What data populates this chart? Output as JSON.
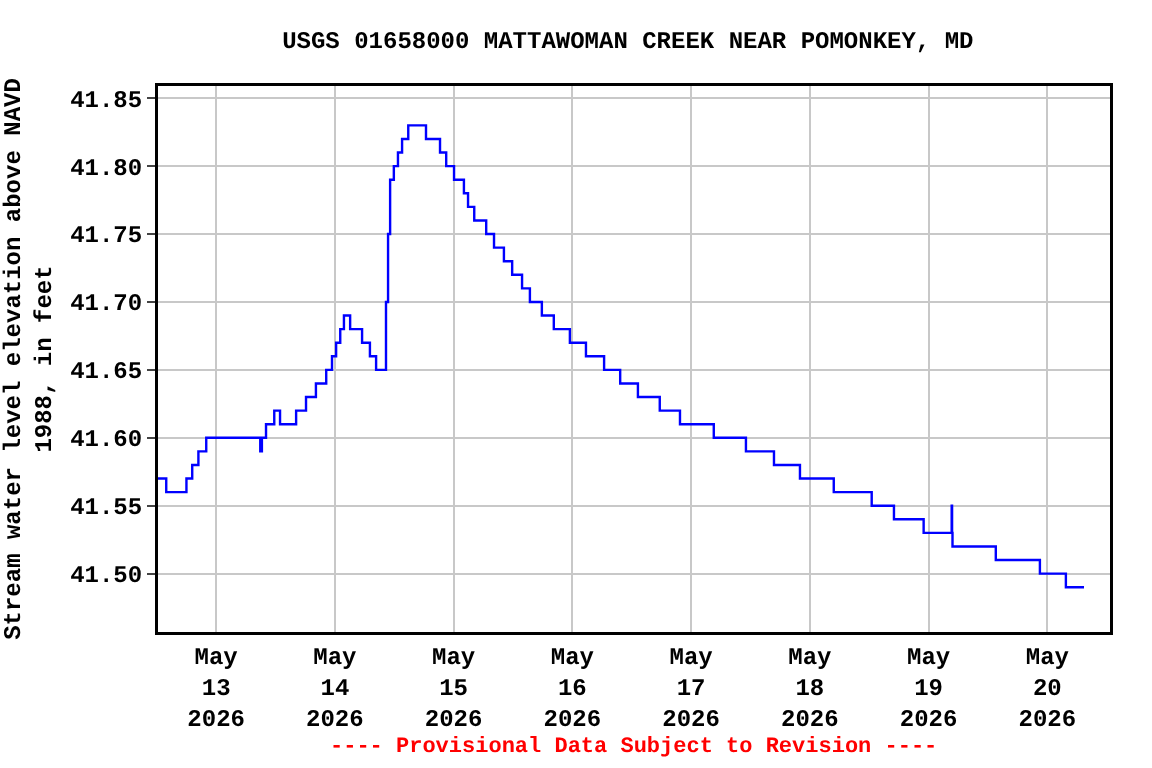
{
  "chart_data": {
    "type": "step",
    "title": "USGS 01658000 MATTAWOMAN CREEK NEAR POMONKEY, MD",
    "ylabel": "Stream water level elevation above NAVD\n1988, in feet",
    "annotations": [
      "---- Provisional Data Subject to Revision ----"
    ],
    "x": [
      "2026-05-12T12:15",
      "2026-05-12T13:55",
      "2026-05-12T18:00",
      "2026-05-12T19:10",
      "2026-05-12T20:25",
      "2026-05-12T22:00",
      "2026-05-13T08:05",
      "2026-05-13T08:55",
      "2026-05-13T09:15",
      "2026-05-13T10:05",
      "2026-05-13T11:45",
      "2026-05-13T12:55",
      "2026-05-13T16:10",
      "2026-05-13T18:10",
      "2026-05-13T20:10",
      "2026-05-13T22:15",
      "2026-05-13T23:25",
      "2026-05-14T00:15",
      "2026-05-14T01:05",
      "2026-05-14T01:50",
      "2026-05-14T03:05",
      "2026-05-14T05:30",
      "2026-05-14T07:05",
      "2026-05-14T08:20",
      "2026-05-14T10:20",
      "2026-05-14T10:45",
      "2026-05-14T11:10",
      "2026-05-14T11:55",
      "2026-05-14T12:45",
      "2026-05-14T13:35",
      "2026-05-14T14:50",
      "2026-05-14T18:25",
      "2026-05-14T21:15",
      "2026-05-14T22:30",
      "2026-05-15T00:05",
      "2026-05-15T02:05",
      "2026-05-15T02:55",
      "2026-05-15T04:10",
      "2026-05-15T06:35",
      "2026-05-15T08:10",
      "2026-05-15T10:10",
      "2026-05-15T11:50",
      "2026-05-15T13:50",
      "2026-05-15T15:25",
      "2026-05-15T17:50",
      "2026-05-15T20:15",
      "2026-05-15T23:30",
      "2026-05-16T02:45",
      "2026-05-16T06:25",
      "2026-05-16T09:40",
      "2026-05-16T13:15",
      "2026-05-16T17:40",
      "2026-05-16T21:45",
      "2026-05-17T04:35",
      "2026-05-17T11:05",
      "2026-05-17T16:45",
      "2026-05-17T22:00",
      "2026-05-18T04:50",
      "2026-05-18T12:30",
      "2026-05-18T17:00",
      "2026-05-18T23:00",
      "2026-05-19T04:40",
      "2026-05-19T04:45",
      "2026-05-19T04:50",
      "2026-05-19T13:35",
      "2026-05-19T22:30",
      "2026-05-20T03:45",
      "2026-05-20T07:25"
    ],
    "series": [
      {
        "color": "#0000ff",
        "values": [
          41.57,
          41.56,
          41.57,
          41.58,
          41.59,
          41.6,
          41.6,
          41.59,
          41.6,
          41.61,
          41.62,
          41.61,
          41.62,
          41.63,
          41.64,
          41.65,
          41.66,
          41.67,
          41.68,
          41.69,
          41.68,
          41.67,
          41.66,
          41.65,
          41.7,
          41.75,
          41.79,
          41.8,
          41.81,
          41.82,
          41.83,
          41.82,
          41.81,
          41.8,
          41.79,
          41.78,
          41.77,
          41.76,
          41.75,
          41.74,
          41.73,
          41.72,
          41.71,
          41.7,
          41.69,
          41.68,
          41.67,
          41.66,
          41.65,
          41.64,
          41.63,
          41.62,
          41.61,
          41.6,
          41.59,
          41.58,
          41.57,
          41.56,
          41.55,
          41.54,
          41.53,
          41.55,
          41.53,
          41.52,
          41.51,
          41.5,
          41.49,
          41.49
        ]
      }
    ],
    "xlim": [
      "2026-05-12T12:15",
      "2026-05-20T12:40"
    ],
    "xticks": [
      {
        "value": "2026-05-13",
        "label": "May\n13\n2026"
      },
      {
        "value": "2026-05-14",
        "label": "May\n14\n2026"
      },
      {
        "value": "2026-05-15",
        "label": "May\n15\n2026"
      },
      {
        "value": "2026-05-16",
        "label": "May\n16\n2026"
      },
      {
        "value": "2026-05-17",
        "label": "May\n17\n2026"
      },
      {
        "value": "2026-05-18",
        "label": "May\n18\n2026"
      },
      {
        "value": "2026-05-19",
        "label": "May\n19\n2026"
      },
      {
        "value": "2026-05-20",
        "label": "May\n20\n2026"
      }
    ],
    "ylim": [
      41.457,
      41.859
    ],
    "yticks": [
      {
        "value": 41.5,
        "label": "41.50"
      },
      {
        "value": 41.55,
        "label": "41.55"
      },
      {
        "value": 41.6,
        "label": "41.60"
      },
      {
        "value": 41.65,
        "label": "41.65"
      },
      {
        "value": 41.7,
        "label": "41.70"
      },
      {
        "value": 41.75,
        "label": "41.75"
      },
      {
        "value": 41.8,
        "label": "41.80"
      },
      {
        "value": 41.85,
        "label": "41.85"
      }
    ],
    "grid": true,
    "marker": "none",
    "line_style": "solid"
  }
}
